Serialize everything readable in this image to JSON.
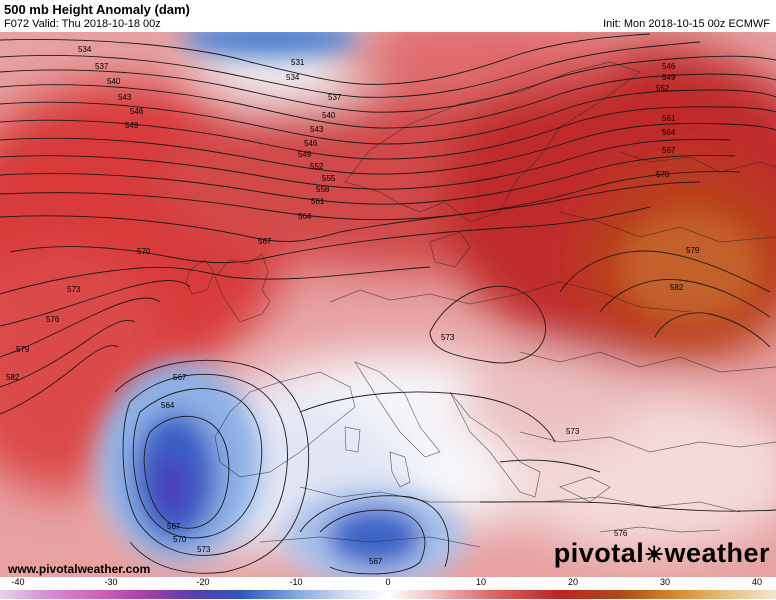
{
  "header": {
    "title": "500 mb Height Anomaly (dam)",
    "valid": "F072 Valid: Thu 2018-10-18 00z",
    "init": "Init: Mon 2018-10-15 00z ECMWF"
  },
  "footer": {
    "website": "www.pivotalweather.com",
    "brand": "pivotal weather",
    "brand_left": "pivotal",
    "brand_sun": "☀",
    "brand_right": "weather"
  },
  "colorbar": {
    "ticks": [
      "-40",
      "-30",
      "-20",
      "-10",
      "0",
      "10",
      "20",
      "30",
      "40"
    ],
    "min": -40,
    "max": 40
  },
  "contour_labels": [
    {
      "id": "c534a",
      "text": "534"
    },
    {
      "id": "c537a",
      "text": "537"
    },
    {
      "id": "c540a",
      "text": "540"
    },
    {
      "id": "c543a",
      "text": "543"
    },
    {
      "id": "c546a",
      "text": "546"
    },
    {
      "id": "c549a",
      "text": "549"
    },
    {
      "id": "c531",
      "text": "531"
    },
    {
      "id": "c534b",
      "text": "534"
    },
    {
      "id": "c537b",
      "text": "537"
    },
    {
      "id": "c540b",
      "text": "540"
    },
    {
      "id": "c543b",
      "text": "543"
    },
    {
      "id": "c546b",
      "text": "546"
    },
    {
      "id": "c549b",
      "text": "549"
    },
    {
      "id": "c552a",
      "text": "552"
    },
    {
      "id": "c555",
      "text": "555"
    },
    {
      "id": "c558",
      "text": "558"
    },
    {
      "id": "c561a",
      "text": "561"
    },
    {
      "id": "c564a",
      "text": "564"
    },
    {
      "id": "c567a",
      "text": "567"
    },
    {
      "id": "c570a",
      "text": "570"
    },
    {
      "id": "c573a",
      "text": "573"
    },
    {
      "id": "c576a",
      "text": "576"
    },
    {
      "id": "c579a",
      "text": "579"
    },
    {
      "id": "c582a",
      "text": "582"
    },
    {
      "id": "c546r",
      "text": "546"
    },
    {
      "id": "c549r",
      "text": "549"
    },
    {
      "id": "c552r",
      "text": "552"
    },
    {
      "id": "c561r",
      "text": "561"
    },
    {
      "id": "c564r",
      "text": "564"
    },
    {
      "id": "c567r",
      "text": "567"
    },
    {
      "id": "c570r",
      "text": "570"
    },
    {
      "id": "c579r",
      "text": "579"
    },
    {
      "id": "c582r",
      "text": "582"
    },
    {
      "id": "c573m",
      "text": "573"
    },
    {
      "id": "c573g",
      "text": "573"
    },
    {
      "id": "c576s",
      "text": "576"
    },
    {
      "id": "c567c",
      "text": "567"
    },
    {
      "id": "c564c",
      "text": "564"
    },
    {
      "id": "c567d",
      "text": "567"
    },
    {
      "id": "c570d",
      "text": "570"
    },
    {
      "id": "c573d",
      "text": "573"
    },
    {
      "id": "c567e",
      "text": "567"
    }
  ]
}
